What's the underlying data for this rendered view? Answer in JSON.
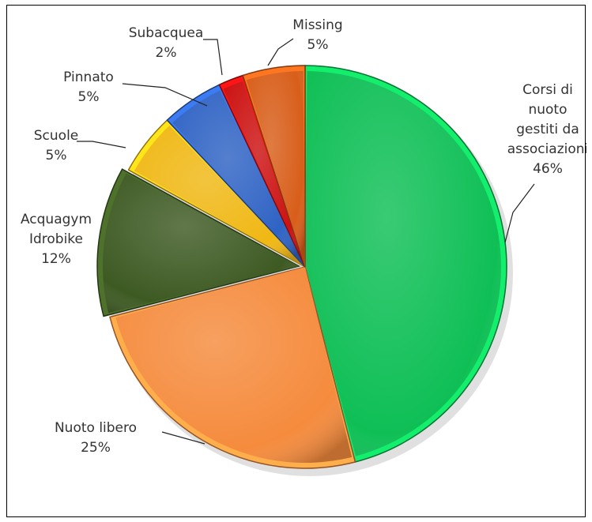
{
  "chart_data": {
    "type": "pie",
    "title": "",
    "slices": [
      {
        "name": "Corsi di nuoto gestiti da associazioni",
        "label_lines": [
          "Corsi di",
          "nuoto",
          "gestiti da",
          "associazioni"
        ],
        "percent_label": "46%",
        "value": 46,
        "color": "#0fbf56"
      },
      {
        "name": "Nuoto libero",
        "label_lines": [
          "Nuoto libero"
        ],
        "percent_label": "25%",
        "value": 25,
        "color": "#f58b3d"
      },
      {
        "name": "Acquagym Idrobike",
        "label_lines": [
          "Acquagym",
          "Idrobike"
        ],
        "percent_label": "12%",
        "value": 12,
        "color": "#3e5a23"
      },
      {
        "name": "Scuole",
        "label_lines": [
          "Scuole"
        ],
        "percent_label": "5%",
        "value": 5,
        "color": "#f0b814"
      },
      {
        "name": "Pinnato",
        "label_lines": [
          "Pinnato"
        ],
        "percent_label": "5%",
        "value": 5,
        "color": "#2f63c4"
      },
      {
        "name": "Subacquea",
        "label_lines": [
          "Subacquea"
        ],
        "percent_label": "2%",
        "value": 2,
        "color": "#cc1111"
      },
      {
        "name": "Missing",
        "label_lines": [
          "Missing"
        ],
        "percent_label": "5%",
        "value": 5,
        "color": "#d85e1a"
      }
    ]
  }
}
